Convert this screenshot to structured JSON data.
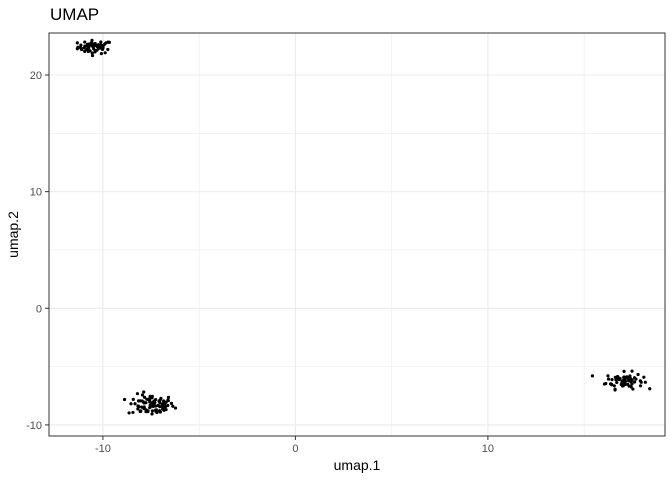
{
  "chart_data": {
    "type": "scatter",
    "title": "UMAP",
    "xlabel": "umap.1",
    "ylabel": "umap.2",
    "xlim": [
      -12.8,
      19.2
    ],
    "ylim": [
      -10.95,
      23.6
    ],
    "x_ticks": [
      -10,
      0,
      10
    ],
    "x_tick_labels": [
      "-10",
      "0",
      "10"
    ],
    "y_ticks": [
      -10,
      0,
      10,
      20
    ],
    "y_tick_labels": [
      "-10",
      "0",
      "10",
      "20"
    ],
    "x_minor_ticks": [
      -5,
      5,
      15
    ],
    "y_minor_ticks": [
      -5,
      5,
      15
    ],
    "grid": true,
    "legend": "none",
    "colors": {
      "point": "#000000",
      "grid": "#ebebeb",
      "panel_border": "#333333",
      "tick_label": "#4d4d4d"
    },
    "clusters": [
      {
        "center": [
          -10.4,
          22.4
        ],
        "spread": [
          0.45,
          0.28
        ],
        "n": 60
      },
      {
        "center": [
          -7.5,
          -8.3
        ],
        "spread": [
          0.6,
          0.45
        ],
        "n": 90
      },
      {
        "center": [
          17.1,
          -6.2
        ],
        "spread": [
          0.48,
          0.35
        ],
        "n": 70
      }
    ]
  }
}
